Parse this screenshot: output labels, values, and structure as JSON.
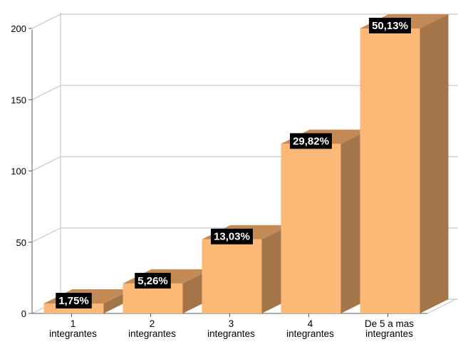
{
  "chart_data": {
    "type": "bar",
    "categories": [
      [
        "1",
        "integrantes"
      ],
      [
        "2",
        "integrantes"
      ],
      [
        "3",
        "integrantes"
      ],
      [
        "4",
        "integrantes"
      ],
      [
        "De 5 a mas",
        "integrantes"
      ]
    ],
    "values": [
      7,
      21,
      52,
      119,
      200
    ],
    "data_labels": [
      "1,75%",
      "5,26%",
      "13,03%",
      "29,82%",
      "50,13%"
    ],
    "yticks": [
      "0",
      "50",
      "100",
      "150",
      "200"
    ],
    "ylim": [
      0,
      200
    ],
    "title": "",
    "xlabel": "",
    "ylabel": "",
    "grid": true,
    "three_d": true
  },
  "colors": {
    "bar_front": "#fbb877",
    "bar_top": "#c38a55",
    "bar_side": "#a37548",
    "gridline": "#c8c8c8",
    "axis": "#5a5a5a",
    "label_bg": "#000000",
    "label_fg": "#ffffff"
  }
}
